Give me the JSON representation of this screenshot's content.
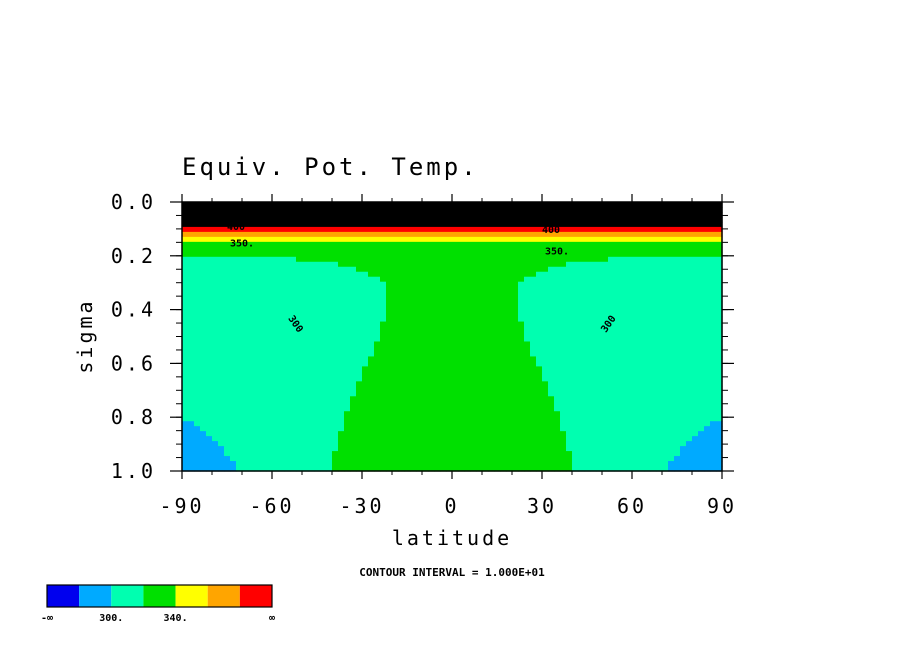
{
  "chart_data": {
    "type": "contour",
    "title": "Equiv. Pot. Temp.",
    "xlabel": "latitude",
    "ylabel": "sigma",
    "xlim": [
      -90,
      90
    ],
    "ylim": [
      1.0,
      0.0
    ],
    "xticks": [
      "-90",
      "-60",
      "-30",
      "0",
      "30",
      "60",
      "90"
    ],
    "yticks": [
      "0.0",
      "0.2",
      "0.4",
      "0.6",
      "0.8",
      "1.0"
    ],
    "xtick_values": [
      -90,
      -60,
      -30,
      0,
      30,
      60,
      90
    ],
    "ytick_values": [
      0.0,
      0.2,
      0.4,
      0.6,
      0.8,
      1.0
    ],
    "contour_interval_text": "CONTOUR INTERVAL = 1.000E+01",
    "contour_labels": [
      {
        "text": "300",
        "lat": -53,
        "sigma": 0.46,
        "angle": 55
      },
      {
        "text": "300",
        "lat": 53,
        "sigma": 0.46,
        "angle": -55
      },
      {
        "text": "350.",
        "lat": -70,
        "sigma": 0.165,
        "angle": 0
      },
      {
        "text": "350.",
        "lat": 35,
        "sigma": 0.195,
        "angle": 0
      },
      {
        "text": "400",
        "lat": -72,
        "sigma": 0.105,
        "angle": 0
      },
      {
        "text": "400",
        "lat": 33,
        "sigma": 0.115,
        "angle": 0
      }
    ],
    "fill_levels": [
      {
        "range": "-inf to 290",
        "color": "#0000ee"
      },
      {
        "range": "290 to 310",
        "color": "#00aaff"
      },
      {
        "range": "310 to 330",
        "color": "#00ffb0"
      },
      {
        "range": "330 to 350",
        "color": "#00e000"
      },
      {
        "range": "350 to 370",
        "color": "#ffff00"
      },
      {
        "range": "370 to 390",
        "color": "#ffa500"
      },
      {
        "range": "390 to inf",
        "color": "#ff0000"
      }
    ],
    "colorbar": {
      "colors": [
        "#0000ee",
        "#00aaff",
        "#00ffb0",
        "#00e000",
        "#ffff00",
        "#ffa500",
        "#ff0000"
      ],
      "labels": [
        "-∞",
        "300.",
        "340.",
        "∞"
      ]
    }
  }
}
